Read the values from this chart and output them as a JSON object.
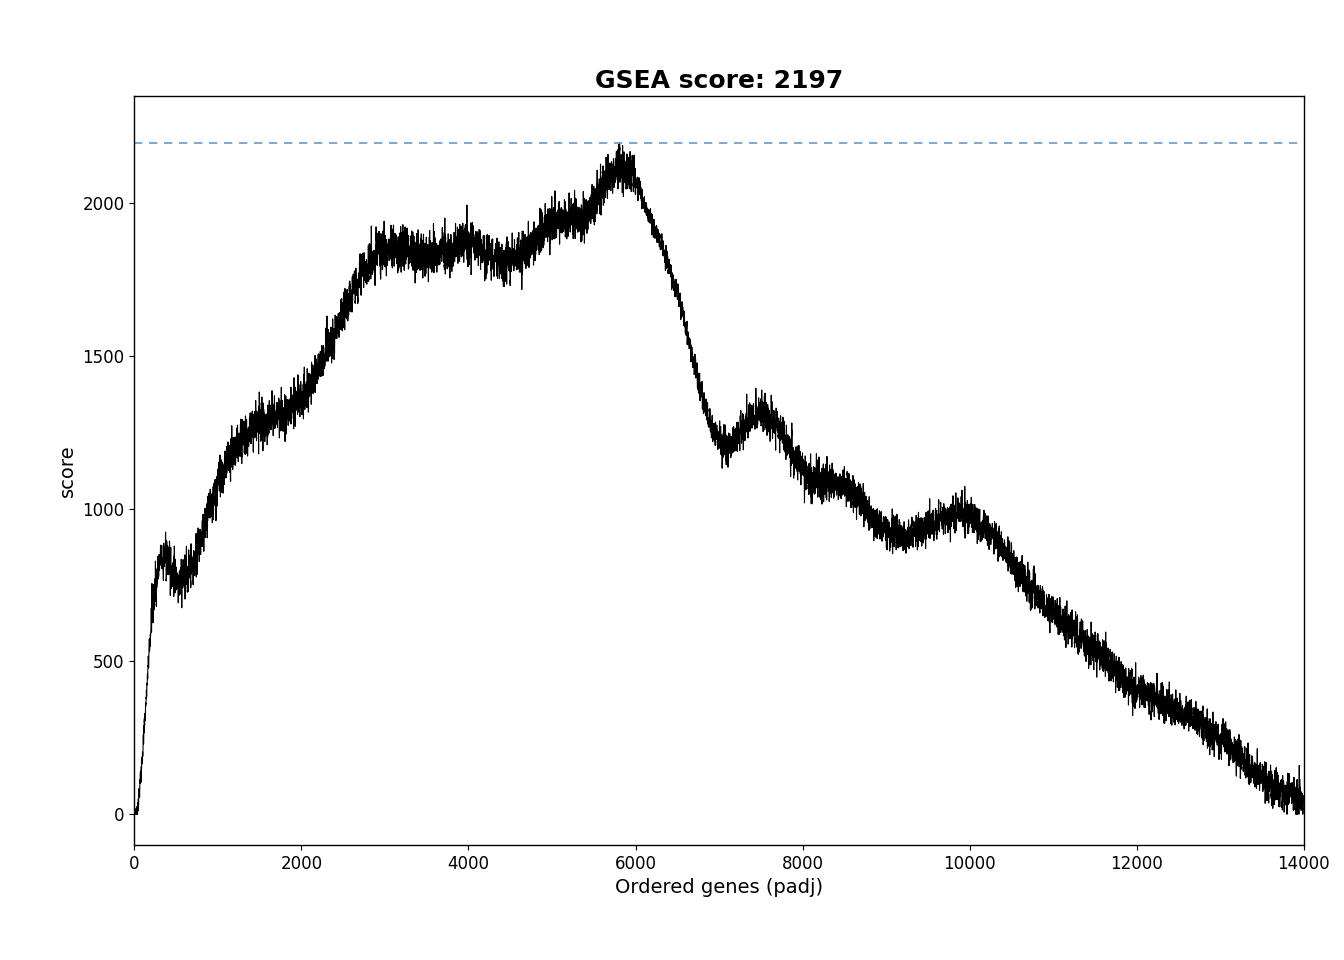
{
  "title": "GSEA score: 2197",
  "xlabel": "Ordered genes (padj)",
  "ylabel": "score",
  "gsea_score": 2197,
  "xmin": 0,
  "xmax": 14000,
  "ymin": -100,
  "ymax": 2350,
  "yticks": [
    0,
    500,
    1000,
    1500,
    2000
  ],
  "xticks": [
    0,
    2000,
    4000,
    6000,
    8000,
    10000,
    12000,
    14000
  ],
  "hline_color": "#6699cc",
  "hline_y": 2197,
  "line_color": "#000000",
  "background_color": "#ffffff",
  "title_fontsize": 18,
  "axis_fontsize": 14,
  "tick_fontsize": 12,
  "seed": 42,
  "n_points": 14001
}
